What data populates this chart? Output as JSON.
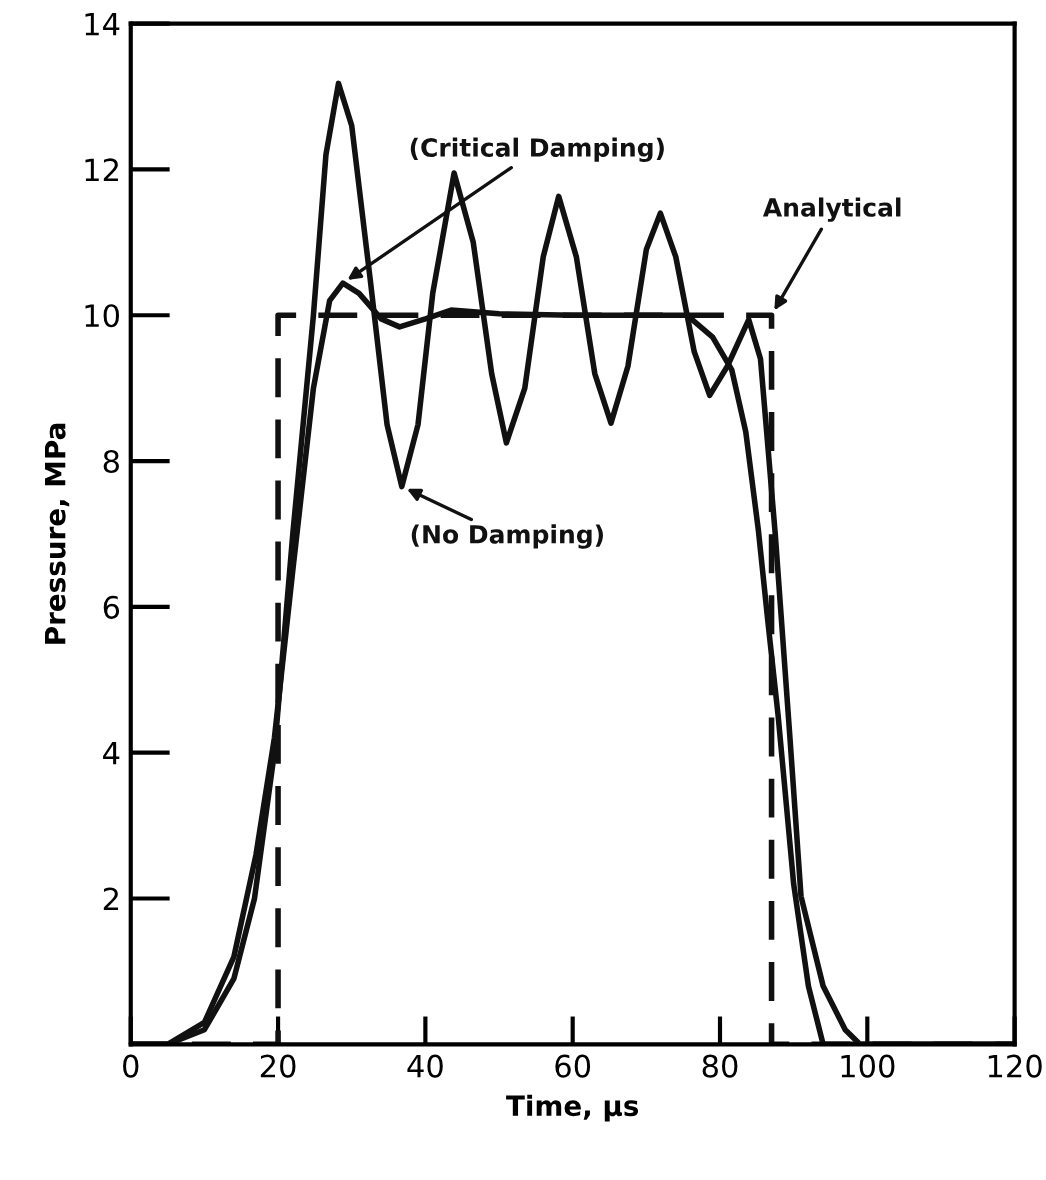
{
  "chart_data": {
    "type": "line",
    "xlabel": "Time, μs",
    "ylabel": "Pressure, MPa",
    "xlim": [
      0,
      120
    ],
    "ylim": [
      0,
      14
    ],
    "xticks": [
      0,
      20,
      40,
      60,
      80,
      100,
      120
    ],
    "yticks": [
      2,
      4,
      6,
      8,
      10,
      12,
      14
    ],
    "grid": false,
    "series": [
      {
        "name": "Analytical",
        "color": "#111111",
        "line_style": "dashed",
        "x": [
          0,
          20,
          20,
          87,
          87,
          120
        ],
        "values": [
          0,
          0,
          10,
          10,
          0,
          0
        ]
      },
      {
        "name": "(Critical Damping)",
        "color": "#111111",
        "line_style": "solid",
        "x": [
          0,
          5,
          10,
          14,
          17,
          19.5,
          22,
          24.8,
          27,
          28.8,
          31,
          34,
          36.5,
          40,
          43.5,
          50,
          60,
          70,
          75.5,
          79,
          81.6,
          83.5,
          85.2,
          86.5,
          87.9,
          90,
          92,
          94,
          100,
          120
        ],
        "values": [
          0,
          0,
          0.3,
          1.2,
          2.6,
          4.2,
          6.5,
          9.0,
          10.2,
          10.44,
          10.3,
          9.95,
          9.84,
          9.95,
          10.07,
          10.02,
          10.0,
          10.0,
          10.0,
          9.7,
          9.25,
          8.4,
          7.06,
          5.8,
          4.5,
          2.2,
          0.8,
          0,
          0,
          0
        ]
      },
      {
        "name": "(No Damping)",
        "color": "#111111",
        "line_style": "solid",
        "x": [
          0,
          5,
          10,
          14,
          16.8,
          19.5,
          22,
          24.8,
          26.5,
          28.2,
          30,
          32.5,
          34.8,
          36.8,
          39,
          41,
          43.9,
          46.5,
          49,
          51,
          53.5,
          56,
          58.1,
          60.5,
          63,
          65.2,
          67.5,
          70,
          71.9,
          74,
          76.5,
          78.6,
          81,
          83.9,
          85.5,
          87.5,
          89.5,
          91,
          94,
          97,
          99,
          120
        ],
        "values": [
          0,
          0,
          0.2,
          0.9,
          2.0,
          4.0,
          7.0,
          10.0,
          12.2,
          13.18,
          12.6,
          10.5,
          8.5,
          7.65,
          8.5,
          10.3,
          11.95,
          11.0,
          9.2,
          8.25,
          9.0,
          10.8,
          11.63,
          10.8,
          9.2,
          8.52,
          9.3,
          10.9,
          11.4,
          10.8,
          9.5,
          8.9,
          9.3,
          9.94,
          9.4,
          7.0,
          4.2,
          2.03,
          0.8,
          0.2,
          0,
          0
        ]
      }
    ]
  }
}
